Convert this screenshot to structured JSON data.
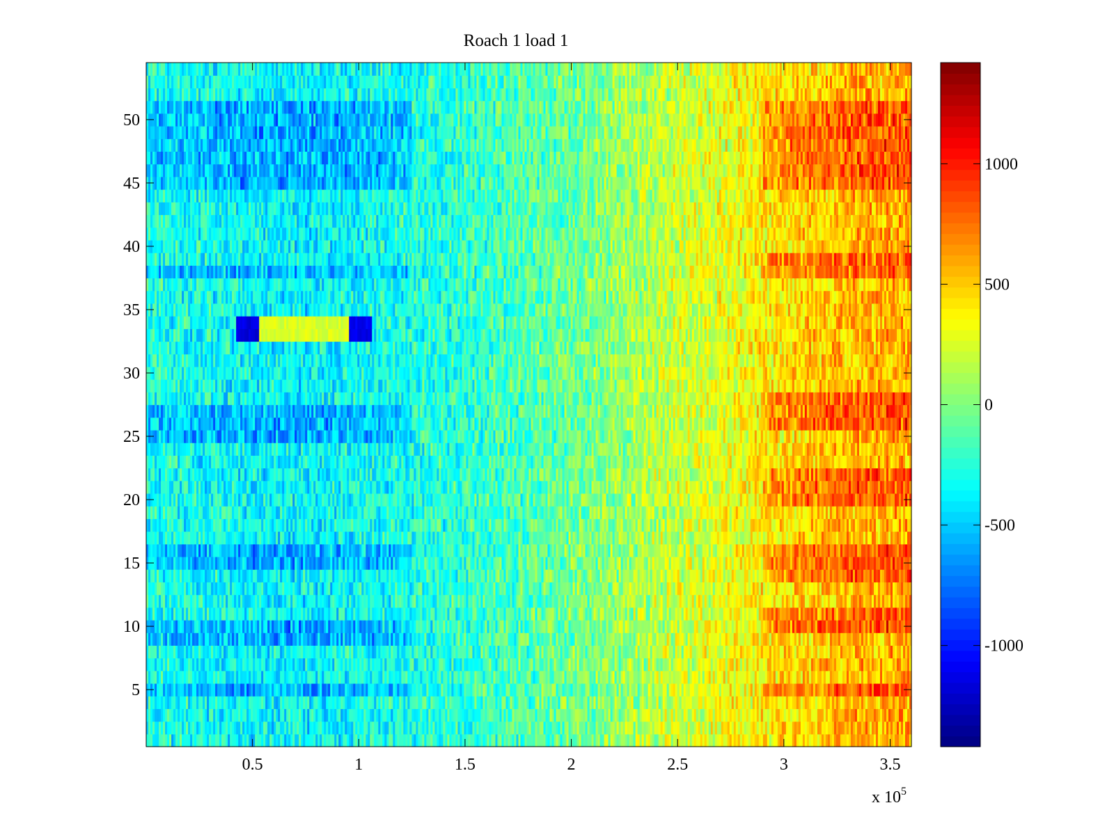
{
  "chart_data": {
    "type": "heatmap",
    "title": "Roach 1 load 1",
    "xlabel": "",
    "ylabel": "",
    "x_multiplier_label": {
      "base": "x 10",
      "exponent": "5"
    },
    "xlim": [
      0,
      360000
    ],
    "ylim": [
      0.5,
      54.5
    ],
    "x_ticks": [
      0.5,
      1,
      1.5,
      2,
      2.5,
      3,
      3.5
    ],
    "x_tick_labels": [
      "0.5",
      "1",
      "1.5",
      "2",
      "2.5",
      "3",
      "3.5"
    ],
    "y_ticks": [
      5,
      10,
      15,
      20,
      25,
      30,
      35,
      40,
      45,
      50
    ],
    "y_tick_labels": [
      "5",
      "10",
      "15",
      "20",
      "25",
      "30",
      "35",
      "40",
      "45",
      "50"
    ],
    "rows": 54,
    "colormap": "jet",
    "clim": [
      -1420,
      1420
    ],
    "colorbar_ticks": [
      -1000,
      -500,
      0,
      500,
      1000
    ],
    "colorbar_tick_labels": [
      "-1000",
      "-500",
      "0",
      "500",
      "1000"
    ],
    "trend_profile": {
      "x_e5": [
        0.0,
        0.5,
        0.75,
        1.0,
        1.5,
        2.0,
        2.5,
        3.0,
        3.3,
        3.6
      ],
      "mean_value": [
        -280,
        -360,
        -380,
        -330,
        -230,
        -60,
        200,
        420,
        560,
        600
      ]
    },
    "blue_rows_lower": [
      5,
      9,
      10,
      15,
      16,
      25,
      26,
      27
    ],
    "blue_rows_upper": [
      38,
      45,
      46,
      47,
      48,
      49,
      50,
      51
    ],
    "hot_rows": [
      5,
      10,
      11,
      14,
      15,
      16,
      20,
      21,
      22,
      26,
      27,
      28,
      38,
      39,
      45,
      46,
      47,
      48,
      49,
      50,
      51
    ],
    "anomalies": [
      {
        "rows": [
          33,
          34
        ],
        "x_start_e5": 0.42,
        "x_end_e5": 0.53,
        "value": -1150
      },
      {
        "rows": [
          33,
          34
        ],
        "x_start_e5": 0.53,
        "x_end_e5": 0.95,
        "value": 250
      },
      {
        "rows": [
          33,
          34
        ],
        "x_start_e5": 0.95,
        "x_end_e5": 1.06,
        "value": -1100
      }
    ]
  }
}
